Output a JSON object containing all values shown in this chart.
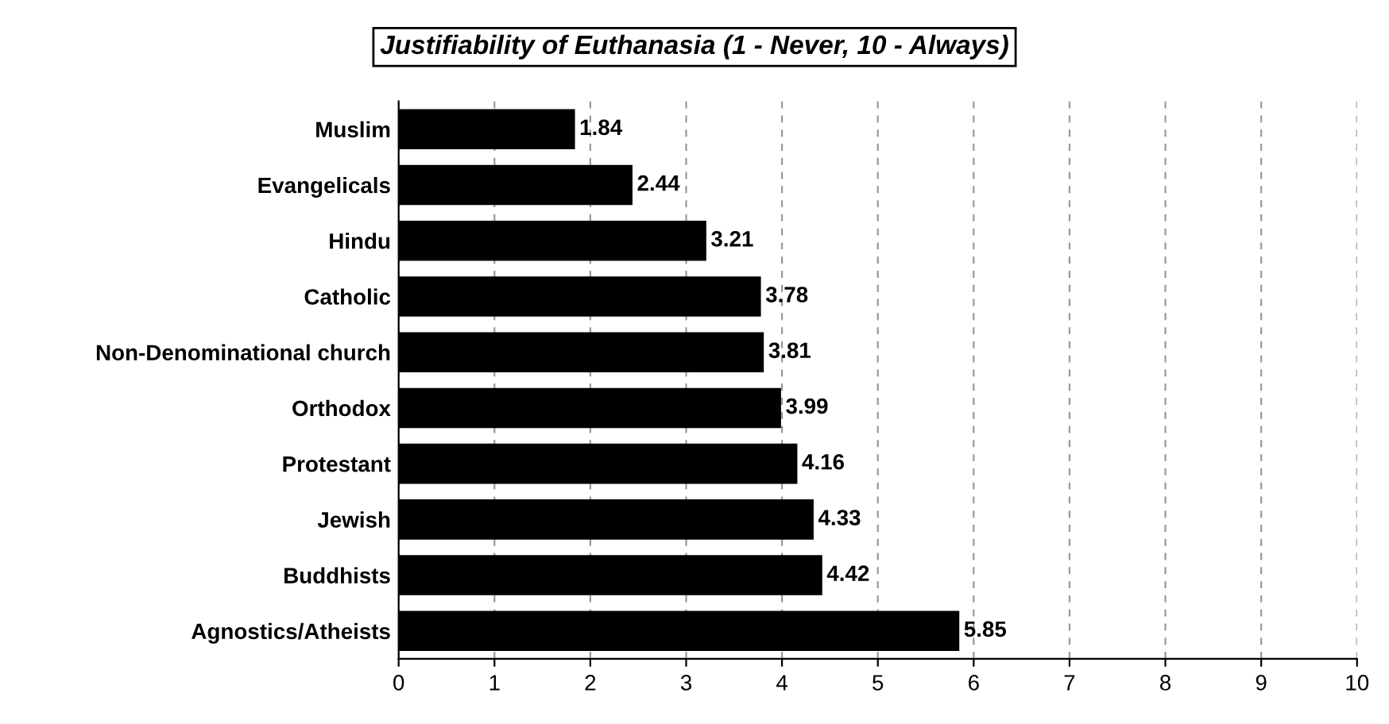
{
  "chart_data": {
    "type": "bar",
    "orientation": "horizontal",
    "title": "Justifiability of Euthanasia (1 - Never, 10 - Always)",
    "categories": [
      "Muslim",
      "Evangelicals",
      "Hindu",
      "Catholic",
      "Non-Denominational church",
      "Orthodox",
      "Protestant",
      "Jewish",
      "Buddhists",
      "Agnostics/Atheists"
    ],
    "values": [
      1.84,
      2.44,
      3.21,
      3.78,
      3.81,
      3.99,
      4.16,
      4.33,
      4.42,
      5.85
    ],
    "color": "#000000",
    "xlim": [
      0,
      10
    ],
    "xticks": [
      0,
      1,
      2,
      3,
      4,
      5,
      6,
      7,
      8,
      9,
      10
    ],
    "grid": "x",
    "data_labels": true
  }
}
